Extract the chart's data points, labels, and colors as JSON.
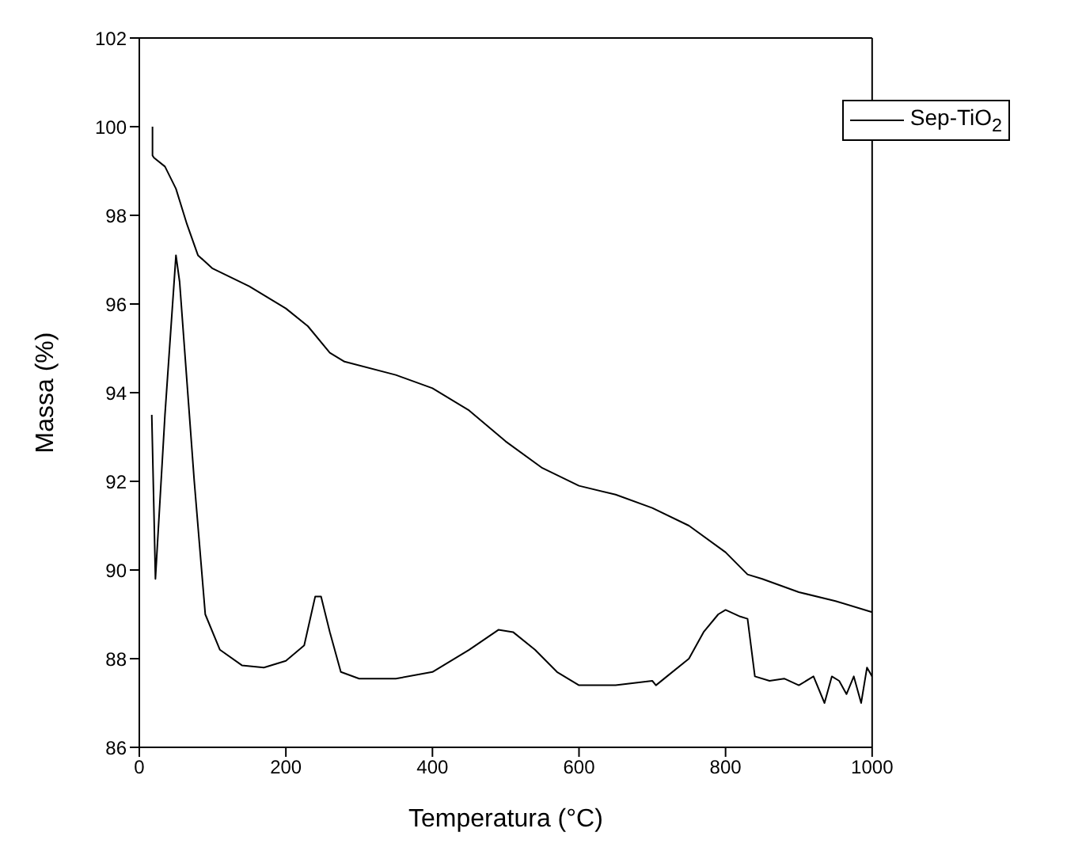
{
  "chart_data": {
    "type": "line",
    "xlabel": "Temperatura (°C)",
    "ylabel": "Massa (%)",
    "xlim": [
      0,
      1000
    ],
    "xticks": [
      0,
      200,
      400,
      600,
      800,
      1000
    ],
    "ylim": [
      86,
      102
    ],
    "yticks": [
      86,
      88,
      90,
      92,
      94,
      96,
      98,
      100,
      102
    ],
    "legend": "top right",
    "series": [
      {
        "name": "Sep-TiO$_{2}$",
        "color": "#000000",
        "x": [
          18,
          18,
          20,
          35,
          50,
          65,
          80,
          100,
          150,
          200,
          230,
          260,
          280,
          350,
          400,
          450,
          500,
          550,
          600,
          650,
          700,
          750,
          800,
          830,
          850,
          900,
          950,
          1000
        ],
        "values": [
          100.0,
          99.35,
          99.3,
          99.1,
          98.6,
          97.8,
          97.1,
          96.8,
          96.4,
          95.9,
          95.5,
          94.9,
          94.7,
          94.4,
          94.1,
          93.6,
          92.9,
          92.3,
          91.9,
          91.7,
          91.4,
          91.0,
          90.4,
          89.9,
          89.8,
          89.5,
          89.3,
          89.05
        ]
      },
      {
        "color": "#000000",
        "x": [
          17,
          22,
          35,
          50,
          55,
          75,
          90,
          110,
          140,
          170,
          200,
          225,
          240,
          248,
          260,
          275,
          300,
          350,
          400,
          450,
          490,
          510,
          540,
          570,
          600,
          650,
          700,
          705,
          720,
          750,
          770,
          790,
          800,
          820,
          830,
          840,
          860,
          880,
          900,
          920,
          935,
          945,
          955,
          965,
          975,
          985,
          993,
          1000
        ],
        "values": [
          93.5,
          89.8,
          93.5,
          97.1,
          96.5,
          92.0,
          89.0,
          88.2,
          87.85,
          87.8,
          87.95,
          88.3,
          89.4,
          89.4,
          88.6,
          87.7,
          87.55,
          87.55,
          87.7,
          88.2,
          88.65,
          88.6,
          88.2,
          87.7,
          87.4,
          87.4,
          87.5,
          87.4,
          87.6,
          88.0,
          88.6,
          89.0,
          89.1,
          88.95,
          88.9,
          87.6,
          87.5,
          87.55,
          87.4,
          87.6,
          87.0,
          87.6,
          87.5,
          87.2,
          87.6,
          87.0,
          87.8,
          87.6
        ]
      }
    ]
  }
}
